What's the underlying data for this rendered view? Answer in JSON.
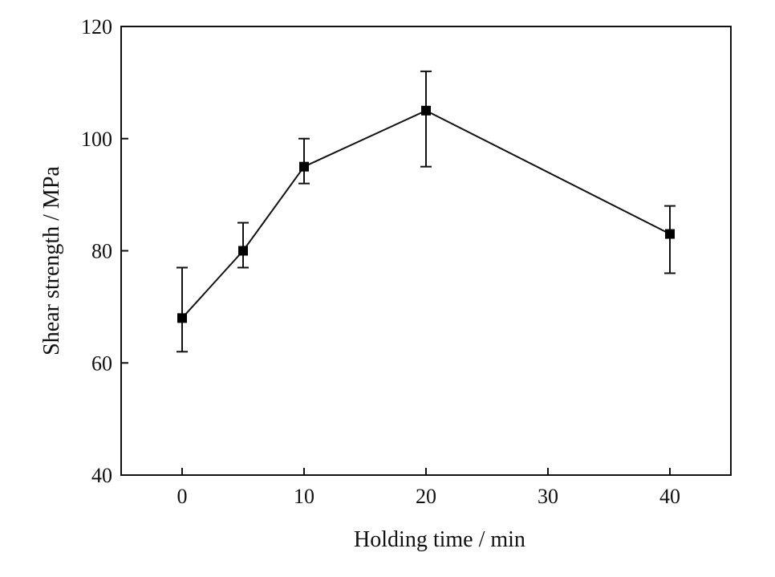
{
  "chart_data": {
    "type": "line",
    "xlabel": "Holding time / min",
    "ylabel": "Shear strength / MPa",
    "xlim": [
      -5,
      45
    ],
    "ylim": [
      40,
      120
    ],
    "xticks": [
      0,
      10,
      20,
      30,
      40
    ],
    "yticks": [
      40,
      60,
      80,
      100,
      120
    ],
    "grid": false,
    "marker": "square",
    "colors": {
      "line": "#111111",
      "marker": "#000000"
    },
    "series": [
      {
        "x": [
          0,
          5,
          10,
          20,
          40
        ],
        "y": [
          68,
          80,
          95,
          105,
          83
        ],
        "y_err_upper": [
          77,
          85,
          100,
          112,
          88
        ],
        "y_err_lower": [
          62,
          77,
          92,
          95,
          76
        ]
      }
    ]
  }
}
